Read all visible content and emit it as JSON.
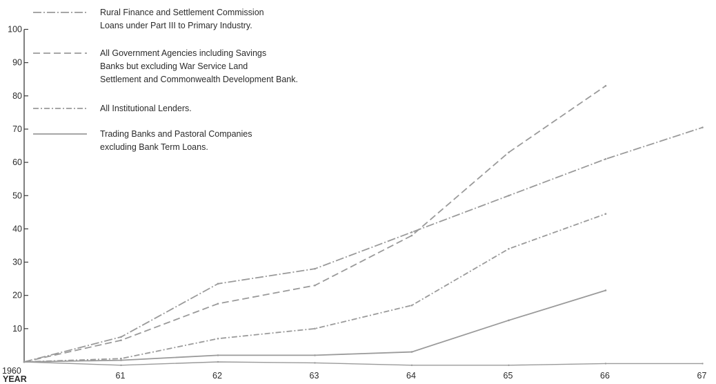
{
  "chart_data": {
    "type": "line",
    "title": "",
    "xlabel": "YEAR",
    "ylabel": "",
    "x": [
      "1960",
      "61",
      "62",
      "63",
      "64",
      "65",
      "66",
      "67"
    ],
    "ylim": [
      0,
      100
    ],
    "y_ticks": [
      10,
      20,
      30,
      40,
      50,
      60,
      70,
      80,
      90,
      100
    ],
    "grid": false,
    "legend_position": "top-left",
    "series": [
      {
        "name": "Rural Finance and Settlement Commission Loans under Part III to Primary Industry.",
        "name_lines": [
          "Rural Finance and Settlement Commission",
          "Loans under Part III to Primary Industry."
        ],
        "style": "dash-dot",
        "values": [
          0,
          7.5,
          23.5,
          28,
          39,
          50,
          61,
          70.5
        ]
      },
      {
        "name": "All Government Agencies including Savings Banks but excluding War Service Land Settlement and Commonwealth Development Bank.",
        "name_lines": [
          "All Government Agencies including Savings",
          "Banks but excluding War Service Land",
          "Settlement and Commonwealth Development Bank."
        ],
        "style": "dashed",
        "values": [
          0,
          6.5,
          17.5,
          23,
          38,
          63,
          83,
          null
        ]
      },
      {
        "name": "All Institutional Lenders.",
        "name_lines": [
          "All Institutional Lenders."
        ],
        "style": "dash-slash",
        "values": [
          0,
          1,
          7,
          10,
          17,
          34,
          44.5,
          null
        ]
      },
      {
        "name": "Trading Banks and Pastoral Companies excluding Bank Term Loans.",
        "name_lines": [
          "Trading Banks and Pastoral Companies",
          "excluding Bank Term Loans."
        ],
        "style": "solid",
        "values": [
          0,
          0.5,
          2,
          2,
          3,
          12.5,
          21.5,
          null
        ]
      }
    ],
    "baseline_series": {
      "values": [
        0,
        -1,
        0,
        -0.3,
        -1,
        -1,
        -0.5,
        -0.5
      ]
    },
    "colors": {
      "line": "#9a9a9a",
      "axis": "#3a3a3a",
      "text": "#2b2b2b"
    }
  }
}
